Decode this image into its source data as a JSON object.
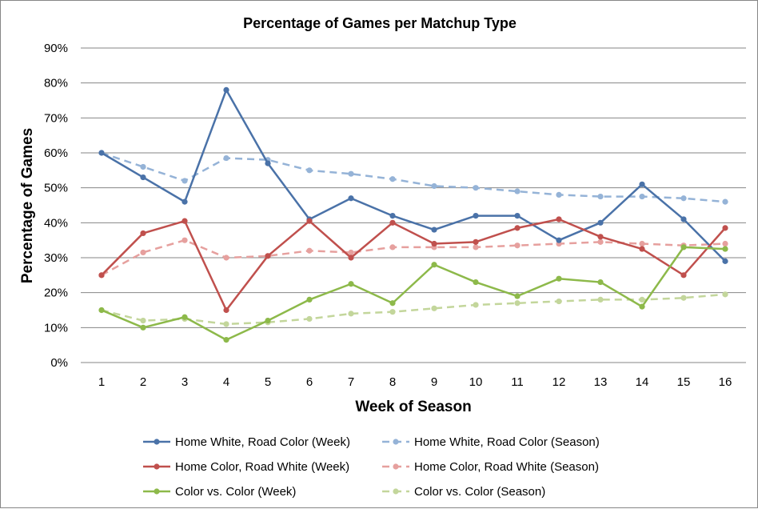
{
  "chart_data": {
    "type": "line",
    "title": "Percentage of Games per Matchup Type",
    "xlabel": "Week of Season",
    "ylabel": "Percentage of Games",
    "x": [
      1,
      2,
      3,
      4,
      5,
      6,
      7,
      8,
      9,
      10,
      11,
      12,
      13,
      14,
      15,
      16
    ],
    "ylim": [
      0,
      90
    ],
    "yticks": [
      "0%",
      "10%",
      "20%",
      "30%",
      "40%",
      "50%",
      "60%",
      "70%",
      "80%",
      "90%"
    ],
    "grid": true,
    "legend_position": "bottom",
    "series": [
      {
        "name": "Home White, Road Color (Week)",
        "color": "#4a72a8",
        "style": "solid",
        "values": [
          60,
          53,
          46,
          78,
          57,
          41,
          47,
          42,
          38,
          42,
          42,
          35,
          40,
          51,
          41,
          29
        ]
      },
      {
        "name": "Home White, Road Color (Season)",
        "color": "#95b3d7",
        "style": "dashed",
        "values": [
          60,
          56,
          52,
          58.5,
          58,
          55,
          54,
          52.5,
          50.5,
          50,
          49,
          48,
          47.5,
          47.5,
          47,
          46
        ]
      },
      {
        "name": "Home Color, Road White (Week)",
        "color": "#c0504d",
        "style": "solid",
        "values": [
          25,
          37,
          40.5,
          15,
          30.5,
          40.5,
          30,
          40,
          34,
          34.5,
          38.5,
          41,
          36,
          32.5,
          25,
          38.5
        ]
      },
      {
        "name": "Home Color, Road White (Season)",
        "color": "#e6a09e",
        "style": "dashed",
        "values": [
          25,
          31.5,
          35,
          30,
          30.5,
          32,
          31.5,
          33,
          33,
          33,
          33.5,
          34,
          34.5,
          34,
          33.5,
          34
        ]
      },
      {
        "name": "Color vs. Color (Week)",
        "color": "#8db94a",
        "style": "solid",
        "values": [
          15,
          10,
          13,
          6.5,
          12,
          18,
          22.5,
          17,
          28,
          23,
          19,
          24,
          23,
          16,
          33,
          32.5
        ]
      },
      {
        "name": "Color vs. Color (Season)",
        "color": "#c3d69b",
        "style": "dashed",
        "values": [
          15,
          12,
          12.5,
          11,
          11.5,
          12.5,
          14,
          14.5,
          15.5,
          16.5,
          17,
          17.5,
          18,
          18,
          18.5,
          19.5
        ]
      }
    ]
  }
}
